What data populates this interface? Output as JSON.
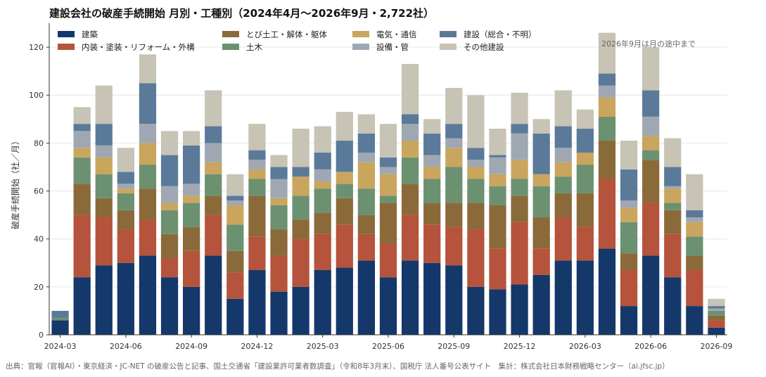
{
  "chart_data": {
    "type": "bar",
    "stacked": true,
    "title": "建設会社の破産手続開始 月別・工種別（2024年4月～2026年9月・2,722社）",
    "ylabel": "破産手続開始（社／月）",
    "xlabel": "",
    "ylim": [
      0,
      130
    ],
    "yticks": [
      0,
      20,
      40,
      60,
      80,
      100,
      120
    ],
    "grid": true,
    "legend_position": "top-left",
    "annotation": "2026年9月は月の途中まで",
    "source": "出典：官報（官報AI）・東京経済・JC-NET の破産公告と記事、国土交通省「建設業許可業者数調査」（令和8年3月末）、国税庁 法人番号公表サイト　集計：株式会社日本財務戦略センター（ai.jfsc.jp）",
    "x_tick_labels": [
      "2024-03",
      "2024-06",
      "2024-09",
      "2024-12",
      "2025-03",
      "2025-06",
      "2025-09",
      "2025-12",
      "2026-03",
      "2026-06",
      "2026-09"
    ],
    "x_tick_positions": [
      0,
      3,
      6,
      9,
      12,
      15,
      18,
      21,
      24,
      27,
      30
    ],
    "categories": [
      "2024-03",
      "2024-04",
      "2024-05",
      "2024-06",
      "2024-07",
      "2024-08",
      "2024-09",
      "2024-10",
      "2024-11",
      "2024-12",
      "2025-01",
      "2025-02",
      "2025-03",
      "2025-04",
      "2025-05",
      "2025-06",
      "2025-07",
      "2025-08",
      "2025-09",
      "2025-10",
      "2025-11",
      "2025-12",
      "2026-01",
      "2026-02",
      "2026-03",
      "2026-04",
      "2026-05",
      "2026-06",
      "2026-07",
      "2026-08",
      "2026-09"
    ],
    "series": [
      {
        "name": "建築",
        "color": "#14386a",
        "values": [
          6,
          24,
          29,
          30,
          33,
          24,
          20,
          33,
          15,
          27,
          18,
          20,
          27,
          28,
          31,
          24,
          31,
          30,
          29,
          20,
          19,
          21,
          25,
          31,
          31,
          36,
          12,
          33,
          24,
          12,
          3
        ]
      },
      {
        "name": "内装・塗装・リフォーム・外構",
        "color": "#b5533c",
        "values": [
          0,
          26,
          20,
          14,
          15,
          8,
          15,
          17,
          11,
          14,
          15,
          20,
          15,
          18,
          11,
          14,
          19,
          16,
          16,
          24,
          17,
          26,
          11,
          18,
          14,
          29,
          15,
          22,
          18,
          15,
          3
        ]
      },
      {
        "name": "とび土工・解体・躯体",
        "color": "#8b6a3a",
        "values": [
          0,
          13,
          8,
          8,
          13,
          10,
          10,
          8,
          9,
          17,
          11,
          8,
          9,
          11,
          8,
          17,
          13,
          9,
          10,
          11,
          18,
          11,
          13,
          10,
          14,
          16,
          7,
          18,
          10,
          6,
          2
        ]
      },
      {
        "name": "土木",
        "color": "#6b9171",
        "values": [
          1,
          11,
          10,
          7,
          10,
          10,
          10,
          9,
          11,
          7,
          10,
          10,
          10,
          6,
          11,
          3,
          11,
          10,
          15,
          10,
          8,
          7,
          13,
          7,
          12,
          10,
          13,
          4,
          3,
          8,
          2
        ]
      },
      {
        "name": "電気・通信",
        "color": "#c9a55e",
        "values": [
          0,
          4,
          7,
          2,
          9,
          3,
          3,
          5,
          8,
          4,
          3,
          8,
          3,
          5,
          11,
          9,
          7,
          5,
          8,
          5,
          5,
          8,
          5,
          6,
          5,
          8,
          6,
          6,
          6,
          6,
          0
        ]
      },
      {
        "name": "設備・管",
        "color": "#9fa8b2",
        "values": [
          0,
          7,
          5,
          2,
          8,
          7,
          5,
          8,
          2,
          4,
          8,
          0,
          5,
          0,
          4,
          3,
          7,
          5,
          4,
          3,
          7,
          11,
          0,
          6,
          0,
          5,
          3,
          8,
          1,
          2,
          1
        ]
      },
      {
        "name": "建設（総合・不明）",
        "color": "#5b7a9a",
        "values": [
          3,
          3,
          9,
          5,
          17,
          13,
          16,
          7,
          2,
          4,
          5,
          4,
          7,
          13,
          8,
          4,
          4,
          9,
          6,
          5,
          1,
          4,
          17,
          9,
          10,
          5,
          13,
          11,
          8,
          3,
          1
        ]
      },
      {
        "name": "その他建設",
        "color": "#c7c3b5",
        "values": [
          0,
          7,
          16,
          10,
          12,
          10,
          6,
          15,
          9,
          11,
          5,
          16,
          11,
          12,
          8,
          14,
          21,
          6,
          15,
          22,
          11,
          13,
          6,
          15,
          8,
          17,
          12,
          18,
          12,
          15,
          3
        ]
      }
    ]
  }
}
